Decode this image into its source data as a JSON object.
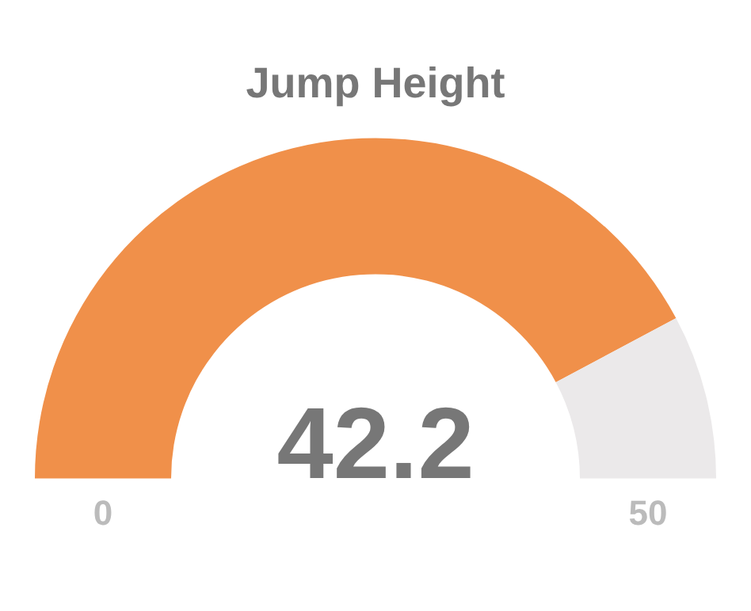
{
  "chart_data": {
    "type": "donut",
    "title": "Jump Height",
    "categories": [
      null,
      null
    ],
    "values": [
      42.2,
      7.8
    ],
    "colors": [
      "#f0904a",
      "#ebe9ea"
    ],
    "value_labels": [
      "42.2",
      null
    ],
    "annotations": [
      "0",
      "50"
    ],
    "legend": false
  }
}
